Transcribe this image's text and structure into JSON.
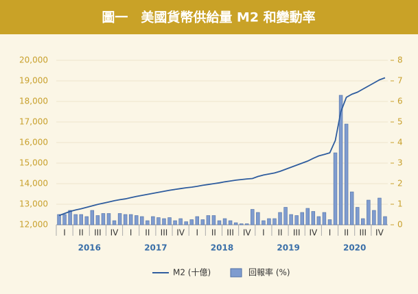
{
  "chart_data": {
    "type": "bar_line",
    "title": "圖一　美國貨幣供給量 M2 和變動率",
    "categories": [
      "I",
      null,
      null,
      "II",
      null,
      null,
      "III",
      null,
      null,
      "IV",
      null,
      null,
      "I",
      null,
      null,
      "II",
      null,
      null,
      "III",
      null,
      null,
      "IV",
      null,
      null,
      "I",
      null,
      null,
      "II",
      null,
      null,
      "III",
      null,
      null,
      "IV",
      null,
      null,
      "I",
      null,
      null,
      "II",
      null,
      null,
      "III",
      null,
      null,
      "IV",
      null,
      null,
      "I",
      null,
      null,
      "II",
      null,
      null,
      "III",
      null,
      null,
      "IV",
      null,
      null
    ],
    "years": [
      "2016",
      "2017",
      "2018",
      "2019",
      "2020"
    ],
    "series": [
      {
        "name": "M2 (十億)",
        "type": "line",
        "color": "#2e5c9e",
        "axis": "y",
        "values": [
          12450,
          12550,
          12650,
          12720,
          12780,
          12850,
          12920,
          12990,
          13050,
          13110,
          13170,
          13220,
          13260,
          13320,
          13380,
          13430,
          13480,
          13530,
          13580,
          13630,
          13680,
          13720,
          13760,
          13800,
          13830,
          13870,
          13920,
          13960,
          14000,
          14040,
          14090,
          14130,
          14170,
          14200,
          14230,
          14250,
          14350,
          14420,
          14470,
          14520,
          14600,
          14700,
          14800,
          14900,
          15000,
          15100,
          15230,
          15350,
          15420,
          15500,
          16100,
          17500,
          18200,
          18350,
          18450,
          18600,
          18750,
          18900,
          19050,
          19150
        ]
      },
      {
        "name": "回報率 (%)",
        "type": "bar",
        "color": "#7f9ccf",
        "axis": "y2",
        "values": [
          0.5,
          0.5,
          0.7,
          0.5,
          0.5,
          0.4,
          0.7,
          0.45,
          0.55,
          0.55,
          0.2,
          0.55,
          0.5,
          0.5,
          0.45,
          0.4,
          0.2,
          0.4,
          0.35,
          0.3,
          0.35,
          0.2,
          0.3,
          0.15,
          0.25,
          0.4,
          0.25,
          0.45,
          0.45,
          0.2,
          0.3,
          0.2,
          0.1,
          0.05,
          0.05,
          0.75,
          0.6,
          0.2,
          0.3,
          0.3,
          0.6,
          0.85,
          0.5,
          0.45,
          0.6,
          0.8,
          0.65,
          0.4,
          0.6,
          0.25,
          3.5,
          6.3,
          4.9,
          1.6,
          0.85,
          0.3,
          1.2,
          0.7,
          1.3,
          0.4
        ]
      }
    ],
    "ylim": [
      12000,
      20000
    ],
    "yticks": [
      {
        "value": 12000,
        "label": "12,000"
      },
      {
        "value": 13000,
        "label": "13,000"
      },
      {
        "value": 14000,
        "label": "14,000"
      },
      {
        "value": 15000,
        "label": "15,000"
      },
      {
        "value": 16000,
        "label": "16,000"
      },
      {
        "value": 17000,
        "label": "17,000"
      },
      {
        "value": 18000,
        "label": "18,000"
      },
      {
        "value": 19000,
        "label": "19,000"
      },
      {
        "value": 20000,
        "label": "20,000"
      }
    ],
    "y2lim": [
      0,
      8
    ],
    "y2ticks": [
      0,
      1,
      2,
      3,
      4,
      5,
      6,
      7,
      8
    ],
    "grid": true,
    "legend": "bottom"
  }
}
